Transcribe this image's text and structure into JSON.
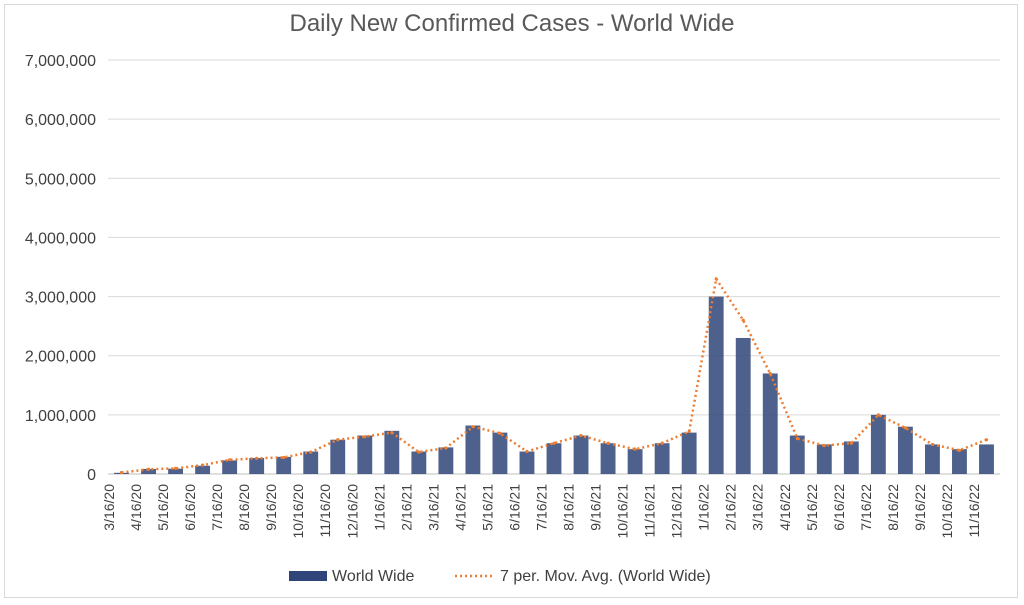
{
  "chart_data": {
    "type": "bar",
    "title": "Daily New Confirmed Cases - World Wide",
    "xlabel": "",
    "ylabel": "",
    "ylim": [
      0,
      7000000
    ],
    "y_ticks": [
      "0",
      "1,000,000",
      "2,000,000",
      "3,000,000",
      "4,000,000",
      "5,000,000",
      "6,000,000",
      "7,000,000"
    ],
    "y_tick_values": [
      0,
      1000000,
      2000000,
      3000000,
      4000000,
      5000000,
      6000000,
      7000000
    ],
    "categories": [
      "3/16/20",
      "4/16/20",
      "5/16/20",
      "6/16/20",
      "7/16/20",
      "8/16/20",
      "9/16/20",
      "10/16/20",
      "11/16/20",
      "12/16/20",
      "1/16/21",
      "2/16/21",
      "3/16/21",
      "4/16/21",
      "5/16/21",
      "6/16/21",
      "7/16/21",
      "8/16/21",
      "9/16/21",
      "10/16/21",
      "11/16/21",
      "12/16/21",
      "1/16/22",
      "2/16/22",
      "3/16/22",
      "4/16/22",
      "5/16/22",
      "6/16/22",
      "7/16/22",
      "8/16/22",
      "9/16/22",
      "10/16/22",
      "11/16/22"
    ],
    "series": [
      {
        "name": "World Wide",
        "kind": "bar",
        "color": "#2f4478",
        "values": [
          20000,
          85000,
          90000,
          140000,
          230000,
          270000,
          290000,
          380000,
          580000,
          650000,
          730000,
          380000,
          450000,
          820000,
          700000,
          380000,
          520000,
          650000,
          520000,
          420000,
          520000,
          700000,
          3000000,
          2300000,
          1700000,
          650000,
          500000,
          550000,
          1000000,
          800000,
          500000,
          420000,
          500000
        ]
      },
      {
        "name": "7 per. Mov. Avg. (World Wide)",
        "kind": "line",
        "color": "#ed7d31",
        "values": [
          25000,
          80000,
          95000,
          150000,
          240000,
          265000,
          280000,
          370000,
          580000,
          630000,
          700000,
          370000,
          440000,
          800000,
          690000,
          380000,
          520000,
          650000,
          520000,
          420000,
          520000,
          720000,
          3300000,
          2600000,
          1700000,
          600000,
          480000,
          520000,
          1000000,
          780000,
          500000,
          400000,
          580000
        ]
      }
    ],
    "legend_position": "bottom",
    "grid": true
  }
}
